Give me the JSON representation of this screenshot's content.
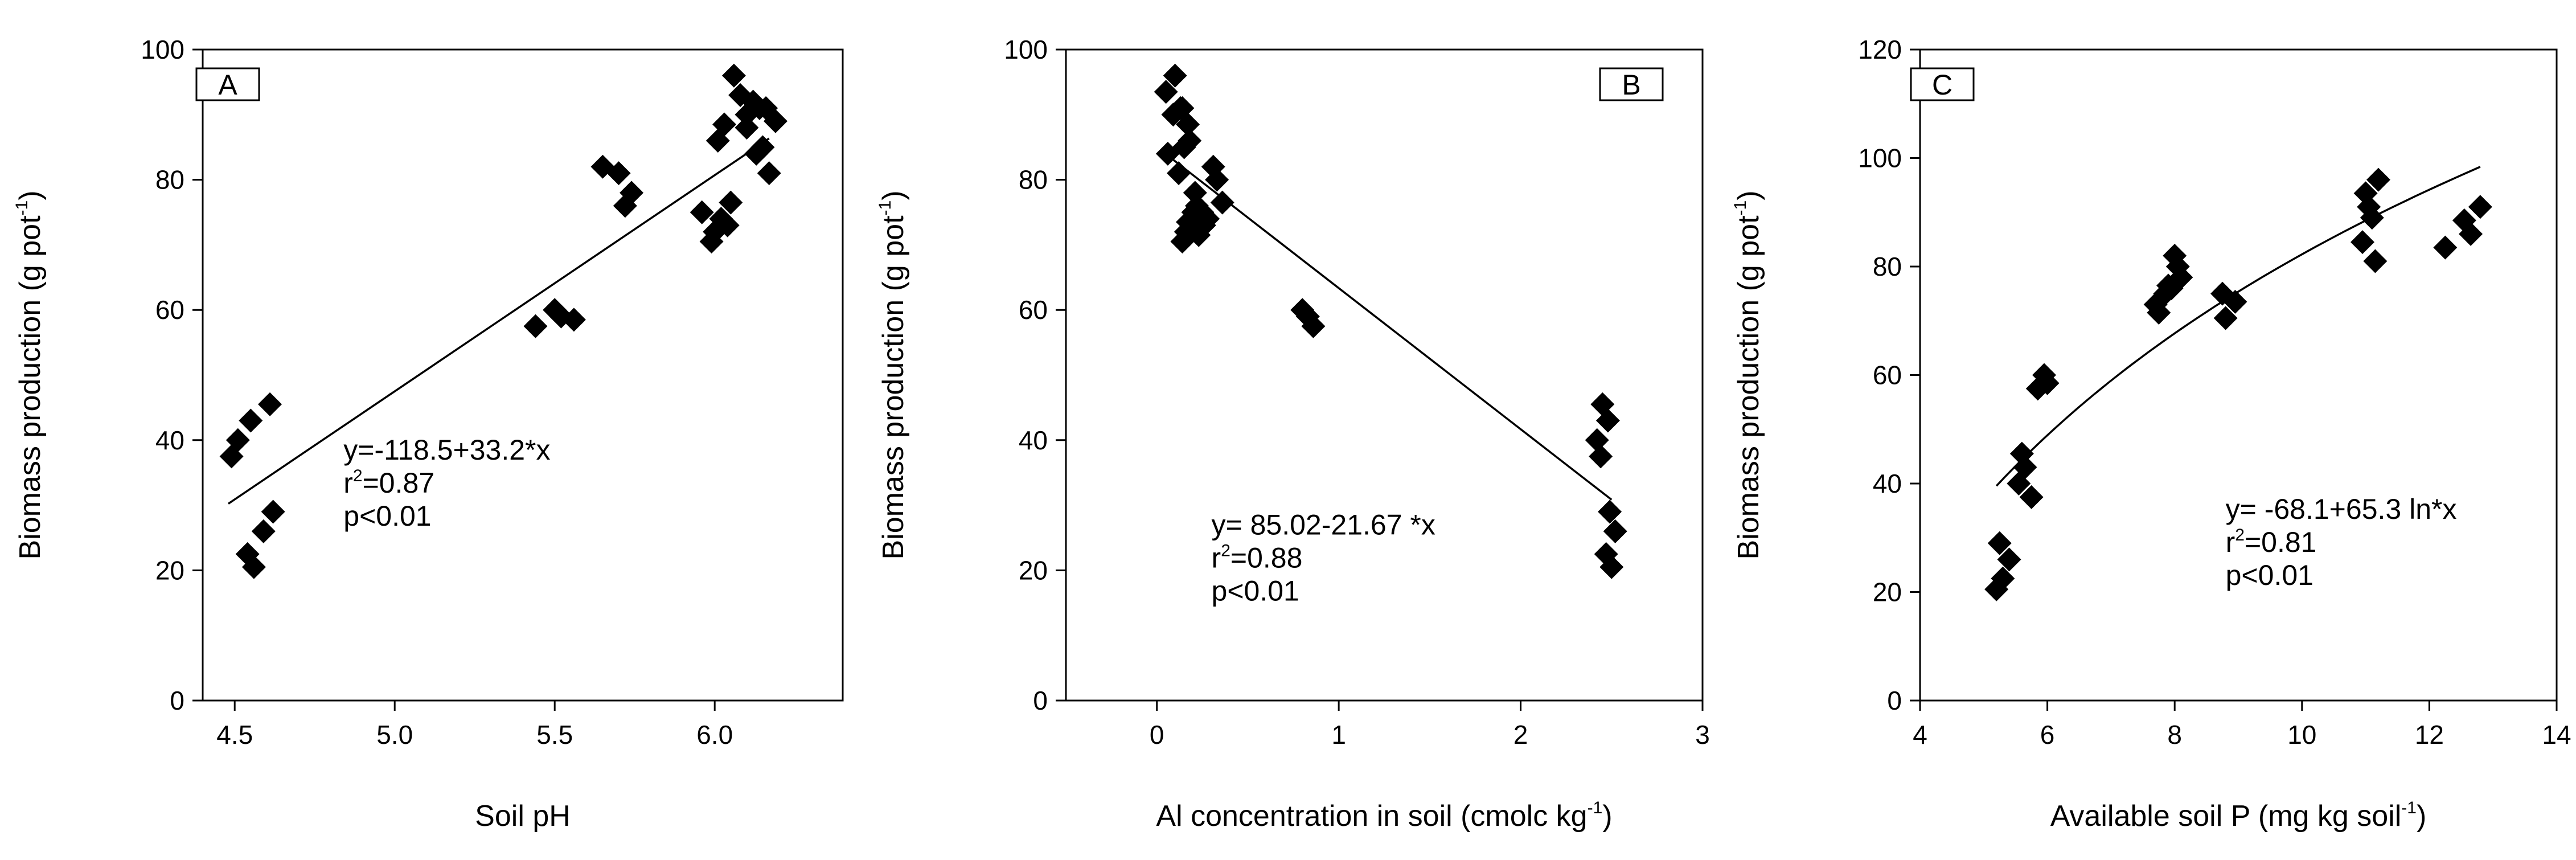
{
  "chart_data": [
    {
      "type": "scatter",
      "panel_label": "A",
      "ylabel": "Biomass production (g pot-1)",
      "ylabel_parts": {
        "pre": "Biomass production (g pot",
        "sup": "-1",
        "post": ")"
      },
      "xlabel": "Soil pH",
      "xlabel_parts": {
        "pre": "Soil pH",
        "sup": "",
        "post": ""
      },
      "xlim": [
        4.4,
        6.4
      ],
      "ylim": [
        0,
        100
      ],
      "xticks": [
        4.5,
        5.0,
        5.5,
        6.0
      ],
      "xtick_labels": [
        "4.5",
        "5.0",
        "5.5",
        "6.0"
      ],
      "yticks": [
        0,
        20,
        40,
        60,
        80,
        100
      ],
      "ytick_labels": [
        "0",
        "20",
        "40",
        "60",
        "80",
        "100"
      ],
      "series": [
        {
          "name": "observations",
          "x": [
            4.49,
            4.51,
            4.55,
            4.61,
            4.54,
            4.56,
            4.59,
            4.62,
            5.44,
            5.5,
            5.52,
            5.56,
            5.65,
            5.7,
            5.72,
            5.74,
            5.96,
            5.99,
            6.0,
            6.02,
            6.04,
            6.01,
            6.03,
            6.06,
            6.08,
            6.1,
            6.12,
            6.13,
            6.15,
            6.16,
            6.17,
            6.19,
            6.1,
            6.14,
            6.05
          ],
          "y": [
            37.5,
            40,
            43,
            45.5,
            22.5,
            20.5,
            26,
            29,
            57.5,
            60,
            59,
            58.5,
            82,
            81,
            76,
            78,
            75,
            70.5,
            72,
            74,
            73,
            86,
            88.5,
            96,
            93,
            90,
            92,
            84,
            85,
            91,
            81,
            89,
            88,
            91,
            76.5
          ]
        }
      ],
      "fit": {
        "type": "linear",
        "intercept": -118.5,
        "slope": 33.2,
        "x_range": [
          4.48,
          6.17
        ]
      },
      "annotation": {
        "line1": "y=-118.5+33.2*x",
        "r2_pre": "r",
        "r2_sup": "2",
        "r2_post": "=0.87",
        "line3": "p<0.01"
      }
    },
    {
      "type": "scatter",
      "panel_label": "B",
      "ylabel": "Biomass production (g pot-1)",
      "ylabel_parts": {
        "pre": "Biomass production (g pot",
        "sup": "-1",
        "post": ")"
      },
      "xlabel": "Al concentration in soil (cmolc kg-1)",
      "xlabel_parts": {
        "pre": "Al concentration in soil (cmolc kg",
        "sup": "-1",
        "post": ")"
      },
      "xlim": [
        -0.5,
        3.0
      ],
      "ylim": [
        0,
        100
      ],
      "xticks": [
        0,
        1,
        2,
        3
      ],
      "xtick_labels": [
        "0",
        "1",
        "2",
        "3"
      ],
      "yticks": [
        0,
        20,
        40,
        60,
        80,
        100
      ],
      "ytick_labels": [
        "0",
        "20",
        "40",
        "60",
        "80",
        "100"
      ],
      "series": [
        {
          "name": "observations",
          "x": [
            0.05,
            0.1,
            0.14,
            0.17,
            0.06,
            0.09,
            0.12,
            0.15,
            0.18,
            0.2,
            0.22,
            0.14,
            0.16,
            0.19,
            0.23,
            0.26,
            0.21,
            0.25,
            0.28,
            0.31,
            0.33,
            0.36,
            0.13,
            0.17,
            0.8,
            0.83,
            0.86,
            2.42,
            2.45,
            2.48,
            2.44,
            2.47,
            2.49,
            2.52,
            2.5
          ],
          "y": [
            93.5,
            96,
            91,
            88.5,
            84,
            90,
            81,
            85,
            86,
            75,
            76,
            70.5,
            72,
            74,
            71.5,
            73,
            78,
            75,
            74,
            82,
            80,
            76.5,
            91,
            73.5,
            60,
            59,
            57.5,
            40,
            45.5,
            43,
            37.5,
            22.5,
            29,
            26,
            20.5
          ]
        }
      ],
      "fit": {
        "type": "linear",
        "intercept": 85.02,
        "slope": -21.67,
        "x_range": [
          0.05,
          2.5
        ]
      },
      "annotation": {
        "line1": "y= 85.02-21.67 *x",
        "r2_pre": "r",
        "r2_sup": "2",
        "r2_post": "=0.88",
        "line3": "p<0.01"
      }
    },
    {
      "type": "scatter",
      "panel_label": "C",
      "ylabel": "Biomass production (g pot-1)",
      "ylabel_parts": {
        "pre": "Biomass production (g pot",
        "sup": "-1",
        "post": ")"
      },
      "xlabel": "Available soil P (mg kg soil-1)",
      "xlabel_parts": {
        "pre": "Available soil P (mg kg soil",
        "sup": "-1",
        "post": ")"
      },
      "xlim": [
        4,
        14
      ],
      "ylim": [
        0,
        120
      ],
      "xticks": [
        4,
        6,
        8,
        10,
        12,
        14
      ],
      "xtick_labels": [
        "4",
        "6",
        "8",
        "10",
        "12",
        "14"
      ],
      "yticks": [
        0,
        20,
        40,
        60,
        80,
        100,
        120
      ],
      "ytick_labels": [
        "0",
        "20",
        "40",
        "60",
        "80",
        "100",
        "120"
      ],
      "series": [
        {
          "name": "observations",
          "x": [
            5.2,
            5.3,
            5.25,
            5.4,
            5.6,
            5.55,
            5.65,
            5.75,
            5.85,
            5.95,
            6.0,
            7.7,
            7.75,
            7.85,
            7.9,
            8.0,
            8.05,
            7.95,
            8.1,
            8.75,
            8.8,
            8.95,
            10.95,
            11.0,
            11.05,
            11.1,
            11.15,
            11.2,
            12.25,
            12.55,
            12.65,
            12.8
          ],
          "y": [
            20.5,
            22.5,
            29,
            26,
            45.5,
            40,
            43,
            37.5,
            57.5,
            60,
            58.5,
            73,
            71.5,
            75,
            76.5,
            82,
            80,
            76,
            78,
            75,
            70.5,
            73.5,
            84.5,
            93.5,
            91,
            89,
            81,
            96,
            83.5,
            88.5,
            86,
            91
          ]
        }
      ],
      "fit": {
        "type": "log",
        "intercept": -68.1,
        "coef": 65.3,
        "x_range": [
          5.2,
          12.8
        ]
      },
      "annotation": {
        "line1": "y= -68.1+65.3 ln*x",
        "r2_pre": "r",
        "r2_sup": "2",
        "r2_post": "=0.81",
        "line3": "p<0.01"
      }
    }
  ]
}
